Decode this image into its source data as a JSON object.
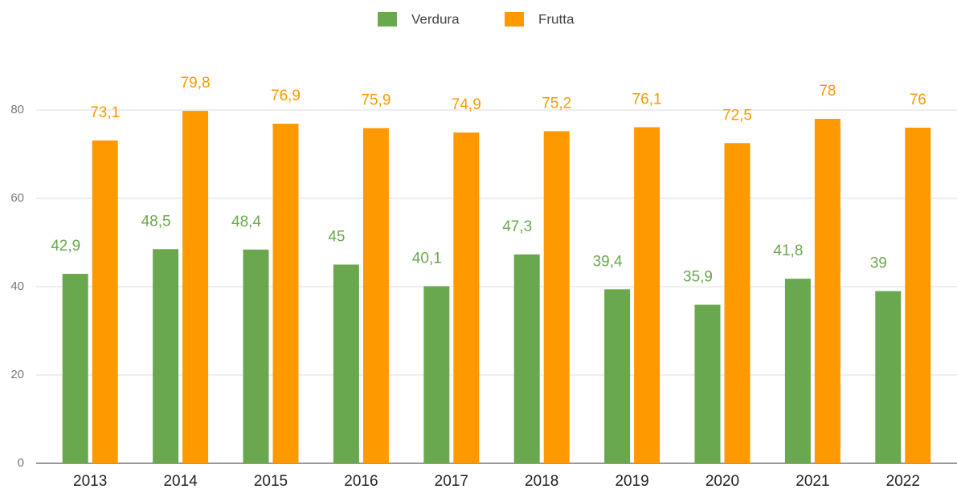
{
  "chart_data": {
    "type": "bar",
    "categories": [
      "2013",
      "2014",
      "2015",
      "2016",
      "2017",
      "2018",
      "2019",
      "2020",
      "2021",
      "2022"
    ],
    "series": [
      {
        "name": "Verdura",
        "color": "#6aa84f",
        "values": [
          42.9,
          48.5,
          48.4,
          45,
          40.1,
          47.3,
          39.4,
          35.9,
          41.8,
          39
        ],
        "value_labels": [
          "42,9",
          "48,5",
          "48,4",
          "45",
          "40,1",
          "47,3",
          "39,4",
          "35,9",
          "41,8",
          "39"
        ]
      },
      {
        "name": "Frutta",
        "color": "#ff9900",
        "values": [
          73.1,
          79.8,
          76.9,
          75.9,
          74.9,
          75.2,
          76.1,
          72.5,
          78,
          76
        ],
        "value_labels": [
          "73,1",
          "79,8",
          "76,9",
          "75,9",
          "74,9",
          "75,2",
          "76,1",
          "72,5",
          "78",
          "76"
        ]
      }
    ],
    "ylim": [
      0,
      90
    ],
    "yticks": [
      0,
      20,
      40,
      60,
      80
    ],
    "grid": true,
    "legend": "top"
  }
}
